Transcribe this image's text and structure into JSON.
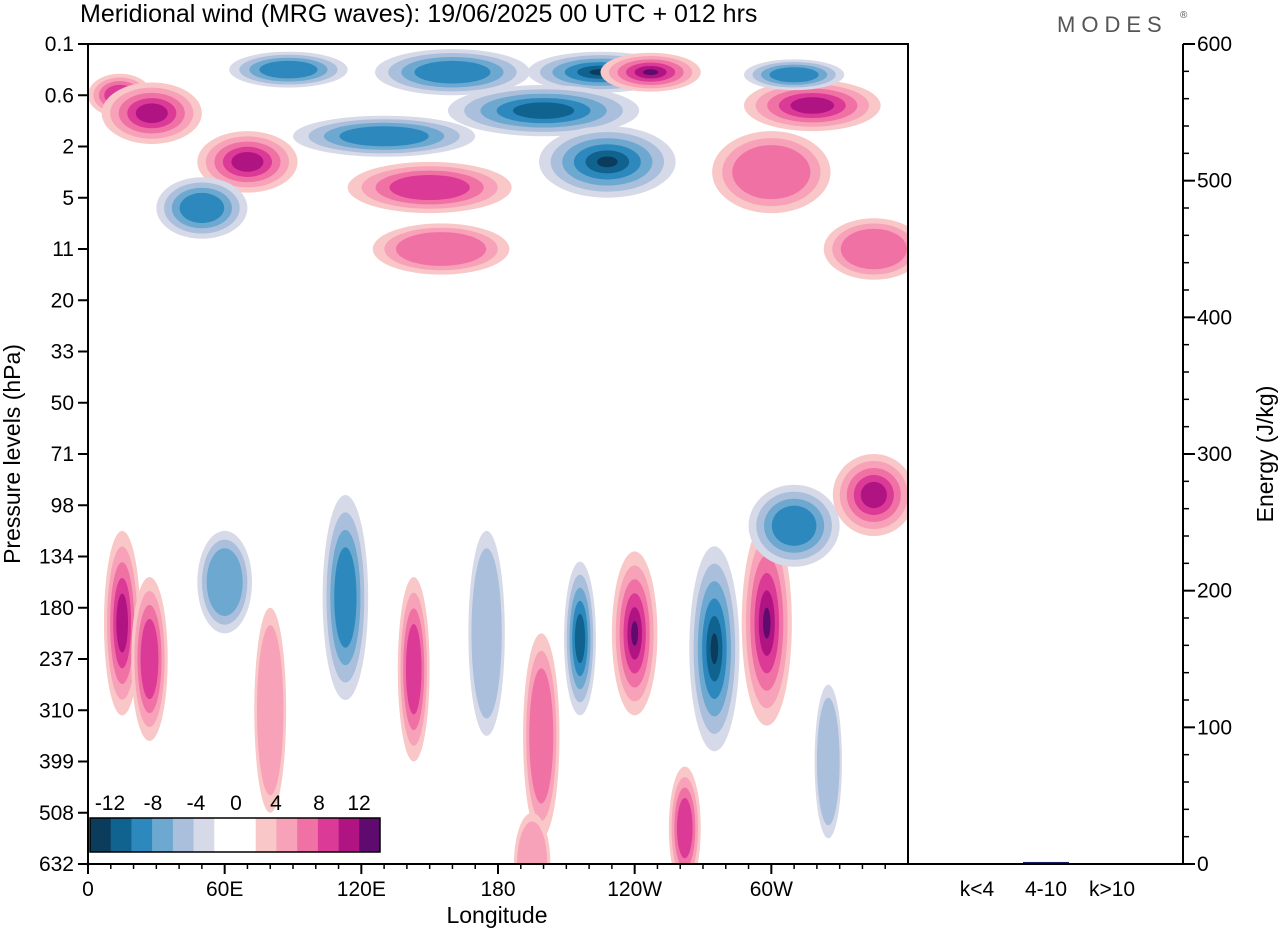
{
  "chart_data": [
    {
      "type": "heatmap",
      "title": "Meridional wind (MRG waves):  19/06/2025  00 UTC  + 012 hrs",
      "xlabel": "Longitude",
      "ylabel": "Pressure levels (hPa)",
      "x_ticks": [
        {
          "lon": 0,
          "label": "0"
        },
        {
          "lon": 60,
          "label": "60E"
        },
        {
          "lon": 120,
          "label": "120E"
        },
        {
          "lon": 180,
          "label": "180"
        },
        {
          "lon": 240,
          "label": "120W"
        },
        {
          "lon": 300,
          "label": "60W"
        }
      ],
      "xlim": [
        0,
        360
      ],
      "y_levels": [
        "0.1",
        "0.6",
        "2",
        "5",
        "11",
        "20",
        "33",
        "50",
        "71",
        "98",
        "134",
        "180",
        "237",
        "310",
        "399",
        "508",
        "632"
      ],
      "colorbar": {
        "labels": [
          "-12",
          "-8",
          "-4",
          "0",
          "4",
          "8",
          "12"
        ],
        "colors": [
          "#0c3c5c",
          "#10628f",
          "#2d88bd",
          "#6ca8cf",
          "#a9bfdb",
          "#d6d9e8",
          "#ffffff",
          "#ffffff",
          "#f9c7c7",
          "#f7a2b8",
          "#f072a5",
          "#db3a96",
          "#b01483",
          "#5e0a6e"
        ]
      },
      "features": [
        {
          "lon": 14,
          "lev": 1.0,
          "w": 14,
          "h": 0.42,
          "sign": 1,
          "amp": 3
        },
        {
          "lon": 28,
          "lev": 1.35,
          "w": 22,
          "h": 0.6,
          "sign": 1,
          "amp": 4
        },
        {
          "lon": 70,
          "lev": 2.3,
          "w": 22,
          "h": 0.6,
          "sign": 1,
          "amp": 4
        },
        {
          "lon": 88,
          "lev": 0.5,
          "w": 26,
          "h": 0.35,
          "sign": -1,
          "amp": 3
        },
        {
          "lon": 50,
          "lev": 3.2,
          "w": 20,
          "h": 0.6,
          "sign": -1,
          "amp": 3
        },
        {
          "lon": 160,
          "lev": 0.55,
          "w": 34,
          "h": 0.45,
          "sign": -1,
          "amp": 3
        },
        {
          "lon": 225,
          "lev": 0.55,
          "w": 32,
          "h": 0.4,
          "sign": -1,
          "amp": 6
        },
        {
          "lon": 247,
          "lev": 0.55,
          "w": 22,
          "h": 0.38,
          "sign": 1,
          "amp": 6
        },
        {
          "lon": 200,
          "lev": 1.3,
          "w": 42,
          "h": 0.5,
          "sign": -1,
          "amp": 4
        },
        {
          "lon": 228,
          "lev": 2.3,
          "w": 30,
          "h": 0.7,
          "sign": -1,
          "amp": 5
        },
        {
          "lon": 150,
          "lev": 2.8,
          "w": 36,
          "h": 0.5,
          "sign": 1,
          "amp": 3
        },
        {
          "lon": 130,
          "lev": 1.8,
          "w": 40,
          "h": 0.4,
          "sign": -1,
          "amp": 3
        },
        {
          "lon": 318,
          "lev": 1.2,
          "w": 30,
          "h": 0.5,
          "sign": 1,
          "amp": 4
        },
        {
          "lon": 300,
          "lev": 2.5,
          "w": 26,
          "h": 0.8,
          "sign": 1,
          "amp": 2
        },
        {
          "lon": 345,
          "lev": 4.0,
          "w": 22,
          "h": 0.6,
          "sign": 1,
          "amp": 2
        },
        {
          "lon": 310,
          "lev": 0.6,
          "w": 22,
          "h": 0.3,
          "sign": -1,
          "amp": 3
        },
        {
          "lon": 155,
          "lev": 4.0,
          "w": 30,
          "h": 0.5,
          "sign": 1,
          "amp": 2
        },
        {
          "lon": 15,
          "lev": 11.3,
          "w": 8,
          "h": 1.8,
          "sign": 1,
          "amp": 4
        },
        {
          "lon": 27,
          "lev": 12.0,
          "w": 8,
          "h": 1.6,
          "sign": 1,
          "amp": 3
        },
        {
          "lon": 60,
          "lev": 10.5,
          "w": 12,
          "h": 1.0,
          "sign": -1,
          "amp": 2
        },
        {
          "lon": 113,
          "lev": 10.8,
          "w": 10,
          "h": 2.0,
          "sign": -1,
          "amp": 3
        },
        {
          "lon": 143,
          "lev": 12.2,
          "w": 7,
          "h": 1.8,
          "sign": 1,
          "amp": 3
        },
        {
          "lon": 175,
          "lev": 11.5,
          "w": 8,
          "h": 2.0,
          "sign": -1,
          "amp": 1
        },
        {
          "lon": 199,
          "lev": 13.5,
          "w": 8,
          "h": 2.0,
          "sign": 1,
          "amp": 2
        },
        {
          "lon": 216,
          "lev": 11.6,
          "w": 7,
          "h": 1.5,
          "sign": -1,
          "amp": 4
        },
        {
          "lon": 240,
          "lev": 11.5,
          "w": 10,
          "h": 1.6,
          "sign": 1,
          "amp": 5
        },
        {
          "lon": 275,
          "lev": 11.8,
          "w": 11,
          "h": 2.0,
          "sign": -1,
          "amp": 6
        },
        {
          "lon": 298,
          "lev": 11.3,
          "w": 11,
          "h": 2.0,
          "sign": 1,
          "amp": 6
        },
        {
          "lon": 310,
          "lev": 9.4,
          "w": 20,
          "h": 0.8,
          "sign": -1,
          "amp": 3
        },
        {
          "lon": 345,
          "lev": 8.8,
          "w": 18,
          "h": 0.8,
          "sign": 1,
          "amp": 4
        },
        {
          "lon": 262,
          "lev": 15.3,
          "w": 7,
          "h": 1.2,
          "sign": 1,
          "amp": 3
        },
        {
          "lon": 195,
          "lev": 16.0,
          "w": 8,
          "h": 1.0,
          "sign": 1,
          "amp": 1
        },
        {
          "lon": 325,
          "lev": 14.0,
          "w": 6,
          "h": 1.5,
          "sign": -1,
          "amp": 1
        },
        {
          "lon": 80,
          "lev": 13.0,
          "w": 7,
          "h": 2.0,
          "sign": 1,
          "amp": 1
        }
      ],
      "energy_bars": {
        "ylabel": "Energy (J/kg)",
        "ylim": [
          0,
          600
        ],
        "y_ticks": [
          "0",
          "100",
          "200",
          "300",
          "400",
          "500",
          "600"
        ],
        "categories": [
          "k<4",
          "4-10",
          "k>10"
        ],
        "values": [
          0.3,
          1.5,
          0.3
        ],
        "bar_color": "#1a1f66"
      }
    }
  ],
  "brand": "MODES",
  "brand_mark": "®"
}
